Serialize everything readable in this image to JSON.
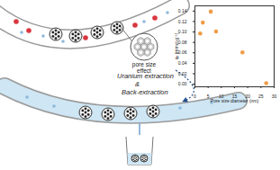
{
  "diagram": {
    "process_label": [
      "Uranium extraction",
      "&",
      "Back-extraction"
    ],
    "zoom_label": [
      "pore size",
      "effect"
    ]
  },
  "chart_data": {
    "type": "scatter",
    "x_label": "Pore size diameter (nm)",
    "y_label": "qₑ (mmol·g⁻¹)",
    "x": [
      2,
      3,
      6,
      8,
      18,
      27
    ],
    "values": [
      0.097,
      0.118,
      0.139,
      0.101,
      0.061,
      0.002
    ],
    "color": "#ef9b45",
    "marker": "circle",
    "xlim": [
      0,
      30
    ],
    "ylim": [
      -0.005,
      0.15
    ],
    "xticks": [
      0,
      5,
      10,
      15,
      20,
      25,
      30
    ],
    "yticks": [
      {
        "value": 0,
        "label": "0.00"
      },
      {
        "value": 0.02,
        "label": "0.02"
      },
      {
        "value": 0.04,
        "label": "0.04"
      },
      {
        "value": 0.06,
        "label": "0.06"
      },
      {
        "value": 0.08,
        "label": "0.08"
      },
      {
        "value": 0.1,
        "label": "0.10"
      },
      {
        "value": 0.12,
        "label": "0.12"
      },
      {
        "value": 0.14,
        "label": "0.14"
      }
    ],
    "grid": false
  }
}
